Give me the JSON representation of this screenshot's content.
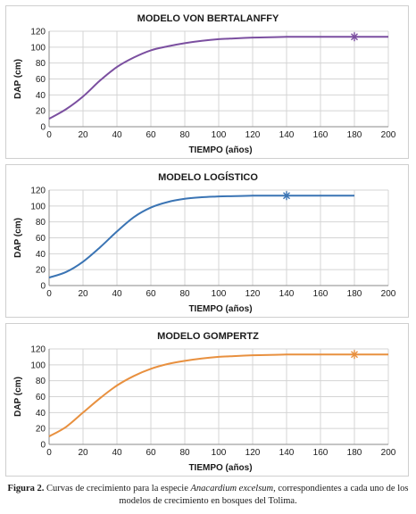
{
  "chart_data": [
    {
      "type": "line",
      "title": "MODELO VON BERTALANFFY",
      "xlabel": "TIEMPO (años)",
      "ylabel": "DAP (cm)",
      "xlim": [
        0,
        200
      ],
      "ylim": [
        0,
        120
      ],
      "xticks": [
        "0",
        "20",
        "40",
        "60",
        "80",
        "100",
        "120",
        "140",
        "160",
        "180",
        "200"
      ],
      "yticks": [
        "0",
        "20",
        "40",
        "60",
        "80",
        "100",
        "120"
      ],
      "grid": true,
      "series": [
        {
          "color": "#7b4fa0",
          "x": [
            0,
            10,
            20,
            30,
            40,
            50,
            60,
            70,
            80,
            90,
            100,
            110,
            120,
            130,
            140,
            150,
            160,
            170,
            180,
            190,
            200
          ],
          "y": [
            10,
            22,
            38,
            58,
            75,
            87,
            96,
            101,
            105,
            108,
            110,
            111,
            112,
            112.5,
            113,
            113,
            113,
            113,
            113,
            113,
            113
          ],
          "marker": {
            "x": 180,
            "y": 113,
            "symbol": "asterisk"
          }
        }
      ]
    },
    {
      "type": "line",
      "title": "MODELO LOGÍSTICO",
      "xlabel": "TIEMPO (años)",
      "ylabel": "DAP (cm)",
      "xlim": [
        0,
        200
      ],
      "ylim": [
        0,
        120
      ],
      "xticks": [
        "0",
        "20",
        "40",
        "60",
        "80",
        "100",
        "120",
        "140",
        "160",
        "180",
        "200"
      ],
      "yticks": [
        "0",
        "20",
        "40",
        "60",
        "80",
        "100",
        "120"
      ],
      "grid": true,
      "series": [
        {
          "color": "#3a74b4",
          "x": [
            0,
            10,
            20,
            30,
            40,
            50,
            60,
            70,
            80,
            90,
            100,
            110,
            120,
            130,
            140,
            150,
            160,
            170,
            180
          ],
          "y": [
            10,
            17,
            30,
            48,
            68,
            86,
            98,
            105,
            109,
            111,
            112,
            112.5,
            113,
            113,
            113,
            113,
            113,
            113,
            113
          ],
          "marker": {
            "x": 140,
            "y": 113,
            "symbol": "asterisk"
          }
        }
      ]
    },
    {
      "type": "line",
      "title": "MODELO GOMPERTZ",
      "xlabel": "TIEMPO (años)",
      "ylabel": "DAP (cm)",
      "xlim": [
        0,
        200
      ],
      "ylim": [
        0,
        120
      ],
      "xticks": [
        "0",
        "20",
        "40",
        "60",
        "80",
        "100",
        "120",
        "140",
        "160",
        "180",
        "200"
      ],
      "yticks": [
        "0",
        "20",
        "40",
        "60",
        "80",
        "100",
        "120"
      ],
      "grid": true,
      "series": [
        {
          "color": "#e8903f",
          "x": [
            0,
            10,
            20,
            30,
            40,
            50,
            60,
            70,
            80,
            90,
            100,
            110,
            120,
            130,
            140,
            150,
            160,
            170,
            180,
            190,
            200
          ],
          "y": [
            10,
            22,
            40,
            58,
            74,
            86,
            95,
            101,
            105,
            108,
            110,
            111,
            112,
            112.5,
            113,
            113,
            113,
            113,
            113,
            113,
            113
          ],
          "marker": {
            "x": 180,
            "y": 113,
            "symbol": "asterisk"
          }
        }
      ]
    }
  ],
  "caption": {
    "label": "Figura 2.",
    "text_before": "Curvas de crecimiento para la especie",
    "species": "Anacardium excelsum",
    "text_after": ", correspondientes a cada uno de los modelos de crecimiento en bosques del Tolima."
  }
}
